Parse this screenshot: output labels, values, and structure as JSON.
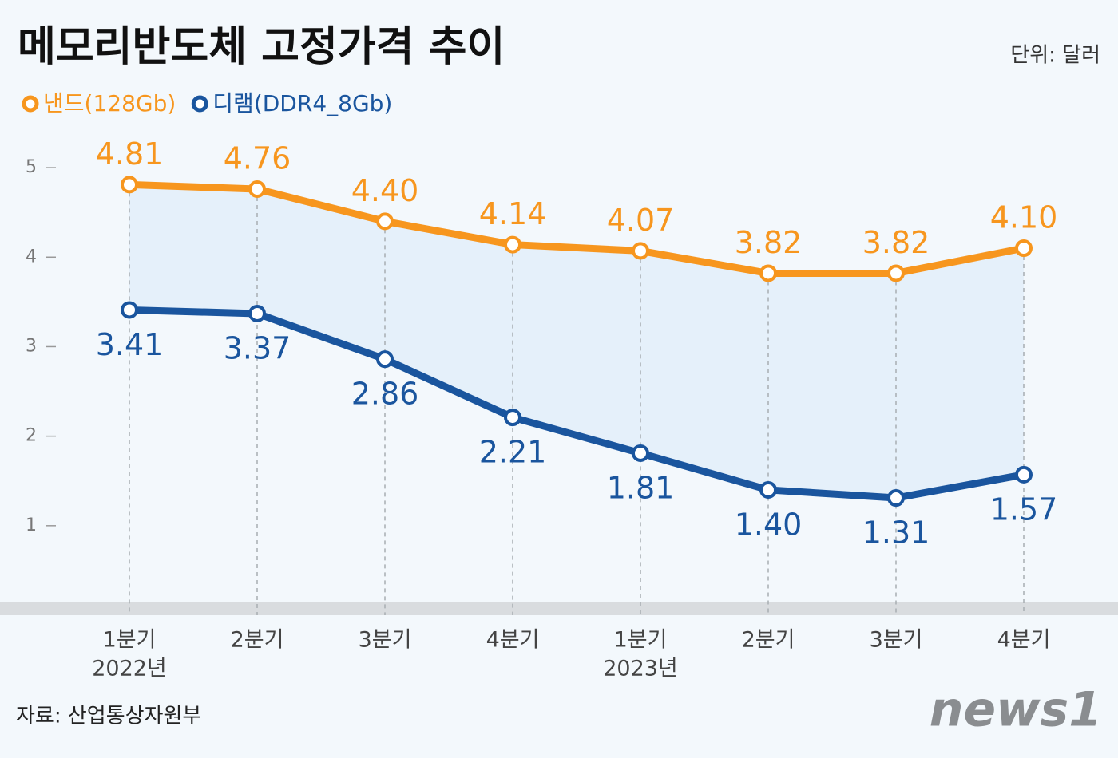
{
  "chart_data": {
    "type": "line",
    "title": "메모리반도체 고정가격 추이",
    "unit": "단위: 달러",
    "categories": [
      "1분기",
      "2분기",
      "3분기",
      "4분기",
      "1분기",
      "2분기",
      "3분기",
      "4분기"
    ],
    "years": [
      "2022년",
      null,
      null,
      null,
      "2023년",
      null,
      null,
      null
    ],
    "series": [
      {
        "name": "낸드(128Gb)",
        "color": "#f7961e",
        "values": [
          4.81,
          4.76,
          4.4,
          4.14,
          4.07,
          3.82,
          3.82,
          4.1
        ],
        "value_labels": [
          "4.81",
          "4.76",
          "4.40",
          "4.14",
          "4.07",
          "3.82",
          "3.82",
          "4.10"
        ]
      },
      {
        "name": "디램(DDR4_8Gb)",
        "color": "#1a559e",
        "values": [
          3.41,
          3.37,
          2.86,
          2.21,
          1.81,
          1.4,
          1.31,
          1.57
        ],
        "value_labels": [
          "3.41",
          "3.37",
          "2.86",
          "2.21",
          "1.81",
          "1.40",
          "1.31",
          "1.57"
        ]
      }
    ],
    "ylim": [
      0,
      5.5
    ],
    "yticks": [
      1,
      2,
      3,
      4,
      5
    ],
    "grid": false,
    "source": "자료: 산업통상자원부",
    "logo": "news1"
  }
}
